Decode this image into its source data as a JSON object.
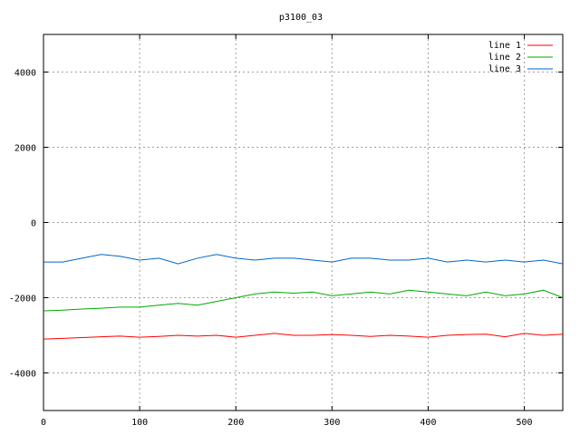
{
  "chart_data": {
    "type": "line",
    "title": "p3100_03",
    "xlabel": "",
    "ylabel": "",
    "xlim": [
      0,
      540
    ],
    "ylim": [
      -5000,
      5000
    ],
    "x_ticks": [
      0,
      100,
      200,
      300,
      400,
      500
    ],
    "y_ticks": [
      -4000,
      -2000,
      0,
      2000,
      4000
    ],
    "grid": true,
    "legend": "top-right",
    "x_step": 20,
    "series": [
      {
        "name": "line 1",
        "color": "#ff0000",
        "values": [
          -3100,
          -3080,
          -3060,
          -3040,
          -3020,
          -3050,
          -3030,
          -3000,
          -3020,
          -3000,
          -3050,
          -3000,
          -2950,
          -3000,
          -3000,
          -2980,
          -3000,
          -3030,
          -3000,
          -3020,
          -3050,
          -3000,
          -2980,
          -2970,
          -3040,
          -2950,
          -3000,
          -2970
        ]
      },
      {
        "name": "line 2",
        "color": "#00aa00",
        "values": [
          -2350,
          -2330,
          -2300,
          -2280,
          -2250,
          -2250,
          -2200,
          -2150,
          -2200,
          -2100,
          -2000,
          -1900,
          -1850,
          -1880,
          -1850,
          -1950,
          -1900,
          -1850,
          -1900,
          -1800,
          -1850,
          -1900,
          -1950,
          -1850,
          -1950,
          -1900,
          -1800,
          -2000
        ]
      },
      {
        "name": "line 3",
        "color": "#0066cc",
        "values": [
          -1050,
          -1050,
          -950,
          -850,
          -900,
          -1000,
          -950,
          -1100,
          -950,
          -850,
          -950,
          -1000,
          -950,
          -950,
          -1000,
          -1050,
          -950,
          -950,
          -1000,
          -1000,
          -950,
          -1050,
          -1000,
          -1050,
          -1000,
          -1050,
          -1000,
          -1100
        ]
      }
    ]
  }
}
